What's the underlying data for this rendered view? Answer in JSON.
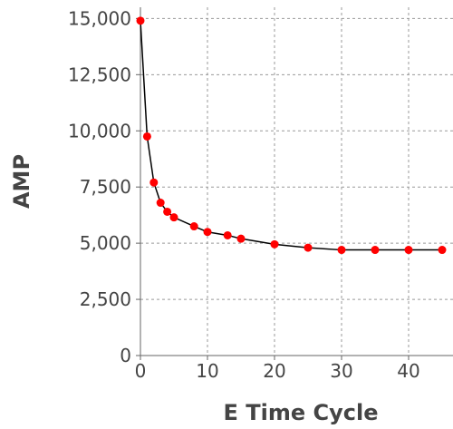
{
  "chart_data": {
    "type": "line",
    "title": "",
    "xlabel": "E Time Cycle",
    "ylabel": "AMP",
    "xlim": [
      0,
      45
    ],
    "ylim": [
      0,
      15500
    ],
    "grid": true,
    "x_ticks": [
      0,
      10,
      20,
      30,
      40
    ],
    "x_tick_labels": [
      "0",
      "10",
      "20",
      "30",
      "40"
    ],
    "y_ticks": [
      0,
      2500,
      5000,
      7500,
      10000,
      12500,
      15000
    ],
    "y_tick_labels": [
      "0",
      "2,500",
      "5,000",
      "7,500",
      "10,000",
      "12,500",
      "15,000"
    ],
    "colors": {
      "points": "#ff0000",
      "line": "#000000",
      "grid": "#999999",
      "axis": "#666666"
    },
    "series": [
      {
        "x": [
          0,
          1,
          2,
          3,
          4,
          5,
          8,
          10,
          13,
          15,
          20,
          25,
          30,
          35,
          40,
          45
        ],
        "y": [
          14900,
          9750,
          7700,
          6800,
          6400,
          6150,
          5750,
          5500,
          5350,
          5200,
          4950,
          4800,
          4700,
          4700,
          4700,
          4700
        ]
      }
    ]
  }
}
